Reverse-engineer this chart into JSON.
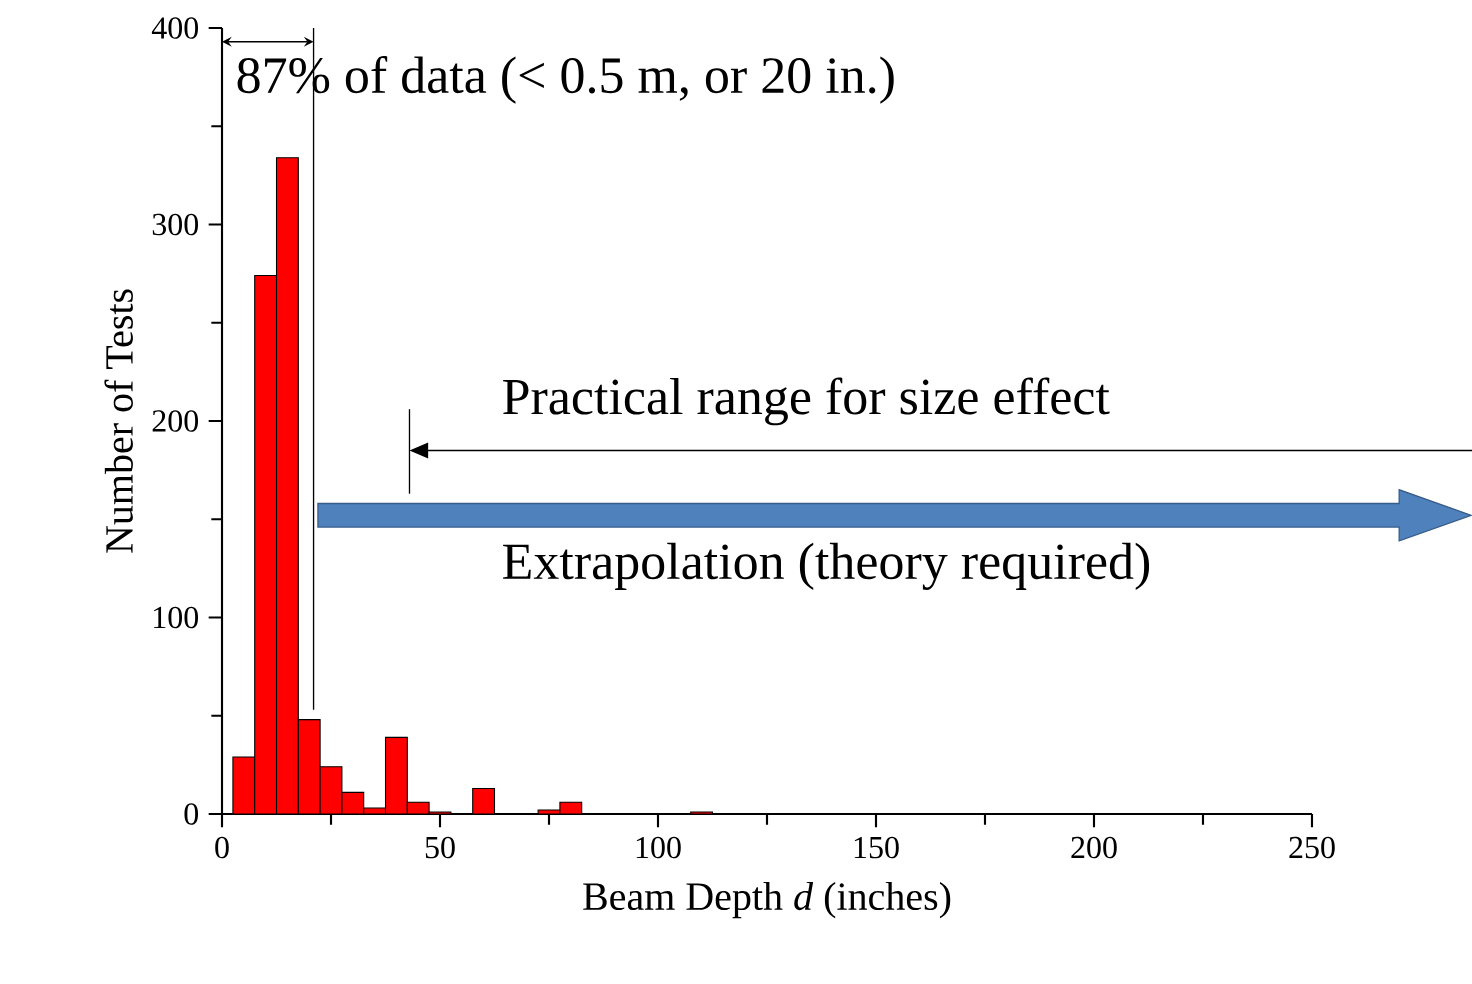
{
  "chart_data": {
    "type": "histogram",
    "xlabel": "Beam Depth *d* (inches)",
    "ylabel": "Number of Tests",
    "bins": [
      2.5,
      7.5,
      12.5,
      17.5,
      22.5,
      27.5,
      32.5,
      37.5,
      42.5,
      47.5,
      52.5,
      57.5,
      62.5,
      67.5,
      72.5,
      77.5,
      82.5,
      87.5,
      92.5,
      97.5,
      102.5,
      107.5,
      112.5
    ],
    "values": [
      29,
      274,
      334,
      48,
      24,
      11,
      3,
      39,
      6,
      1,
      0,
      13,
      0,
      0,
      2,
      6,
      0,
      0,
      0,
      0,
      0,
      1
    ],
    "color": "#ff0000",
    "xlim": [
      0,
      250
    ],
    "ylim": [
      0,
      400
    ],
    "xticks": [
      0,
      50,
      100,
      150,
      200,
      250
    ],
    "yticks": [
      0,
      100,
      200,
      300,
      400
    ],
    "ref_lines": [
      {
        "axis": "x",
        "value": 21
      }
    ],
    "annotations": [
      "87% of data (< 0.5 m, or 20 in.)",
      "Practical range for size effect",
      "Extrapolation (theory required)"
    ]
  }
}
